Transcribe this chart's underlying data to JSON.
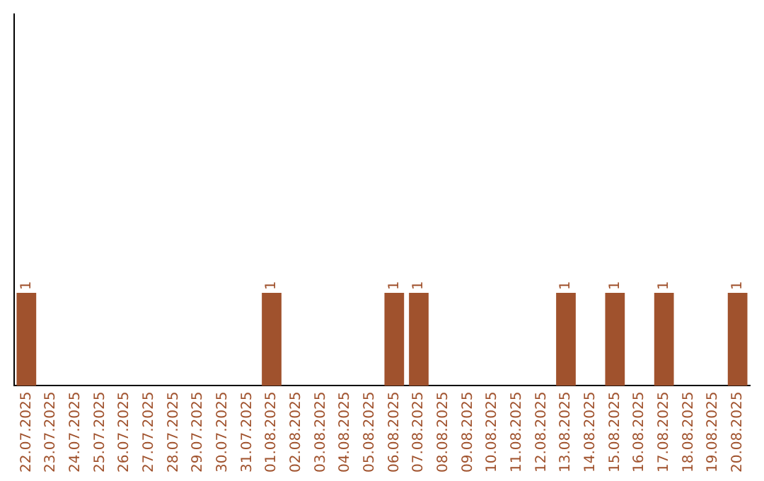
{
  "chart_data": {
    "type": "bar",
    "categories": [
      "22.07.2025",
      "23.07.2025",
      "24.07.2025",
      "25.07.2025",
      "26.07.2025",
      "27.07.2025",
      "28.07.2025",
      "29.07.2025",
      "30.07.2025",
      "31.07.2025",
      "01.08.2025",
      "02.08.2025",
      "03.08.2025",
      "04.08.2025",
      "05.08.2025",
      "06.08.2025",
      "07.08.2025",
      "08.08.2025",
      "09.08.2025",
      "10.08.2025",
      "11.08.2025",
      "12.08.2025",
      "13.08.2025",
      "14.08.2025",
      "15.08.2025",
      "16.08.2025",
      "17.08.2025",
      "18.08.2025",
      "19.08.2025",
      "20.08.2025"
    ],
    "values": [
      1,
      0,
      0,
      0,
      0,
      0,
      0,
      0,
      0,
      0,
      1,
      0,
      0,
      0,
      0,
      1,
      1,
      0,
      0,
      0,
      0,
      0,
      1,
      0,
      1,
      0,
      1,
      0,
      0,
      1
    ],
    "value_labels": [
      "1",
      null,
      null,
      null,
      null,
      null,
      null,
      null,
      null,
      null,
      "1",
      null,
      null,
      null,
      null,
      "1",
      "1",
      null,
      null,
      null,
      null,
      null,
      "1",
      null,
      "1",
      null,
      "1",
      null,
      null,
      "1"
    ],
    "color": "#a0522d",
    "ylim": [
      0,
      4
    ],
    "tick_labels": "x",
    "grid": false,
    "legend": false
  }
}
